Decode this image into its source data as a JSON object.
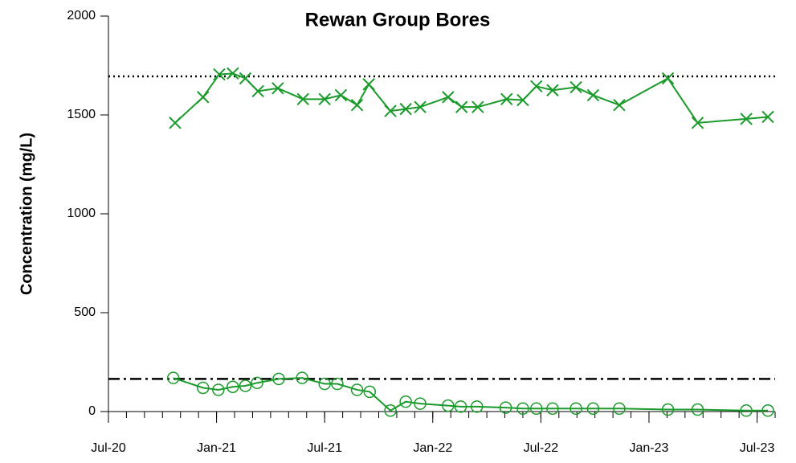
{
  "chart_data": {
    "type": "line",
    "title": "Rewan Group Bores",
    "y_label": "Concentration (mg/L)",
    "xlim": [
      0,
      37
    ],
    "xticks": [
      {
        "value": 0,
        "label": "Jul-20"
      },
      {
        "value": 6,
        "label": "Jan-21"
      },
      {
        "value": 12,
        "label": "Jul-21"
      },
      {
        "value": 18,
        "label": "Jan-22"
      },
      {
        "value": 24,
        "label": "Jul-22"
      },
      {
        "value": 30,
        "label": "Jan-23"
      },
      {
        "value": 36,
        "label": "Jul-23"
      }
    ],
    "ylim": [
      0,
      2000
    ],
    "yticks": [
      0,
      500,
      1000,
      1500,
      2000
    ],
    "reference_lines": [
      {
        "value": 1695,
        "style": "dotted"
      },
      {
        "value": 165,
        "style": "dashdot"
      }
    ],
    "series": [
      {
        "color": "#1a9a2a",
        "marker": "x",
        "x": [
          3.7,
          5.25,
          6.15,
          6.9,
          7.6,
          8.3,
          9.4,
          10.8,
          12.0,
          12.9,
          13.8,
          14.45,
          15.65,
          16.5,
          17.3,
          18.85,
          19.6,
          20.5,
          22.1,
          23.0,
          23.75,
          24.65,
          25.95,
          26.9,
          28.35,
          31.05,
          32.7,
          35.4,
          36.6
        ],
        "values": [
          1460,
          1590,
          1705,
          1710,
          1685,
          1620,
          1635,
          1580,
          1580,
          1600,
          1550,
          1655,
          1520,
          1530,
          1540,
          1590,
          1540,
          1540,
          1580,
          1575,
          1645,
          1625,
          1640,
          1600,
          1550,
          1685,
          1460,
          1480,
          1490
        ]
      },
      {
        "color": "#1a9a2a",
        "marker": "circle",
        "x": [
          3.6,
          5.25,
          6.1,
          6.9,
          7.6,
          8.25,
          9.45,
          10.75,
          12.0,
          12.7,
          13.8,
          14.5,
          15.65,
          16.5,
          17.3,
          18.85,
          19.55,
          20.45,
          22.05,
          23.0,
          23.75,
          24.65,
          25.95,
          26.9,
          28.35,
          31.05,
          32.7,
          35.4,
          36.6
        ],
        "values": [
          170,
          120,
          110,
          125,
          130,
          145,
          165,
          170,
          140,
          140,
          110,
          100,
          5,
          50,
          40,
          30,
          25,
          25,
          20,
          15,
          15,
          15,
          15,
          15,
          15,
          10,
          10,
          5,
          5
        ]
      }
    ]
  }
}
